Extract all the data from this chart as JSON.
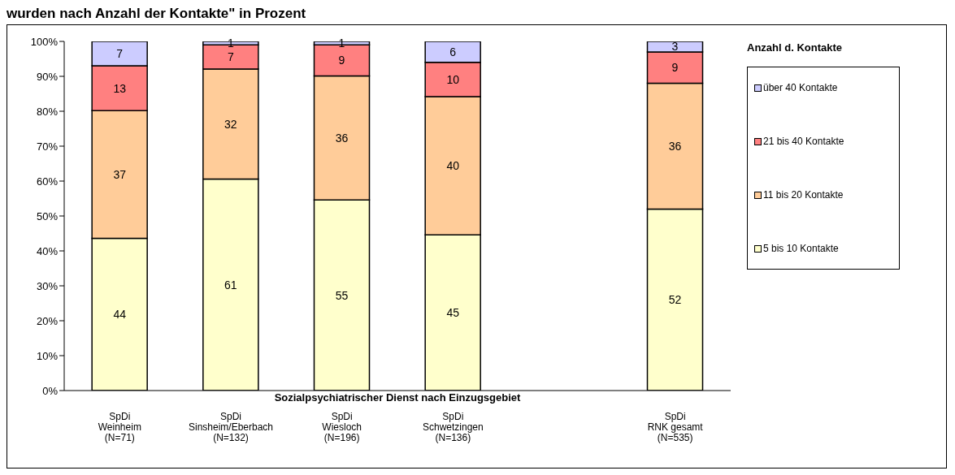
{
  "chart_data": {
    "type": "bar",
    "stacked": true,
    "title": "wurden nach Anzahl der Kontakte\" in Prozent",
    "xlabel": "Sozialpsychiatrischer Dienst nach Einzugsgebiet",
    "legend_title": "Anzahl d. Kontakte",
    "legend": "right",
    "categories": [
      "SpDi\nWeinheim\n(N=71)",
      "SpDi\nSinsheim/Eberbach\n(N=132)",
      "SpDi\nWiesloch\n(N=196)",
      "SpDi\nSchwetzingen\n(N=136)",
      null,
      "SpDi\nRNK gesamt\n(N=535)"
    ],
    "series": [
      {
        "name": "5 bis 10 Kontakte",
        "color": "#ffffcc",
        "values": [
          43.6,
          60.6,
          54.6,
          44.6,
          null,
          52
        ],
        "value_labels": [
          "44",
          "61",
          "55",
          "45",
          null,
          "52"
        ]
      },
      {
        "name": "11 bis 20 Kontakte",
        "color": "#ffcc99",
        "values": [
          36.6,
          31.5,
          35.5,
          39.6,
          null,
          36
        ],
        "value_labels": [
          "37",
          "32",
          "36",
          "40",
          null,
          "36"
        ]
      },
      {
        "name": "21 bis 40 Kontakte",
        "color": "#ff8080",
        "values": [
          12.8,
          6.9,
          8.9,
          9.8,
          null,
          9
        ],
        "value_labels": [
          "13",
          "7",
          "9",
          "10",
          null,
          "9"
        ]
      },
      {
        "name": "über 40 Kontakte",
        "color": "#ccccff",
        "values": [
          7.0,
          1.0,
          1.0,
          6.0,
          null,
          3
        ],
        "value_labels": [
          "7",
          "1",
          "1",
          "6",
          null,
          "3"
        ]
      }
    ],
    "ylim": [
      0,
      100
    ],
    "yticks": [
      {
        "value": 0,
        "label": "0%"
      },
      {
        "value": 10,
        "label": "10%"
      },
      {
        "value": 20,
        "label": "20%"
      },
      {
        "value": 30,
        "label": "30%"
      },
      {
        "value": 40,
        "label": "40%"
      },
      {
        "value": 50,
        "label": "50%"
      },
      {
        "value": 60,
        "label": "60%"
      },
      {
        "value": 70,
        "label": "70%"
      },
      {
        "value": 80,
        "label": "80%"
      },
      {
        "value": 90,
        "label": "90%"
      },
      {
        "value": 100,
        "label": "100%"
      }
    ],
    "grid": false
  }
}
